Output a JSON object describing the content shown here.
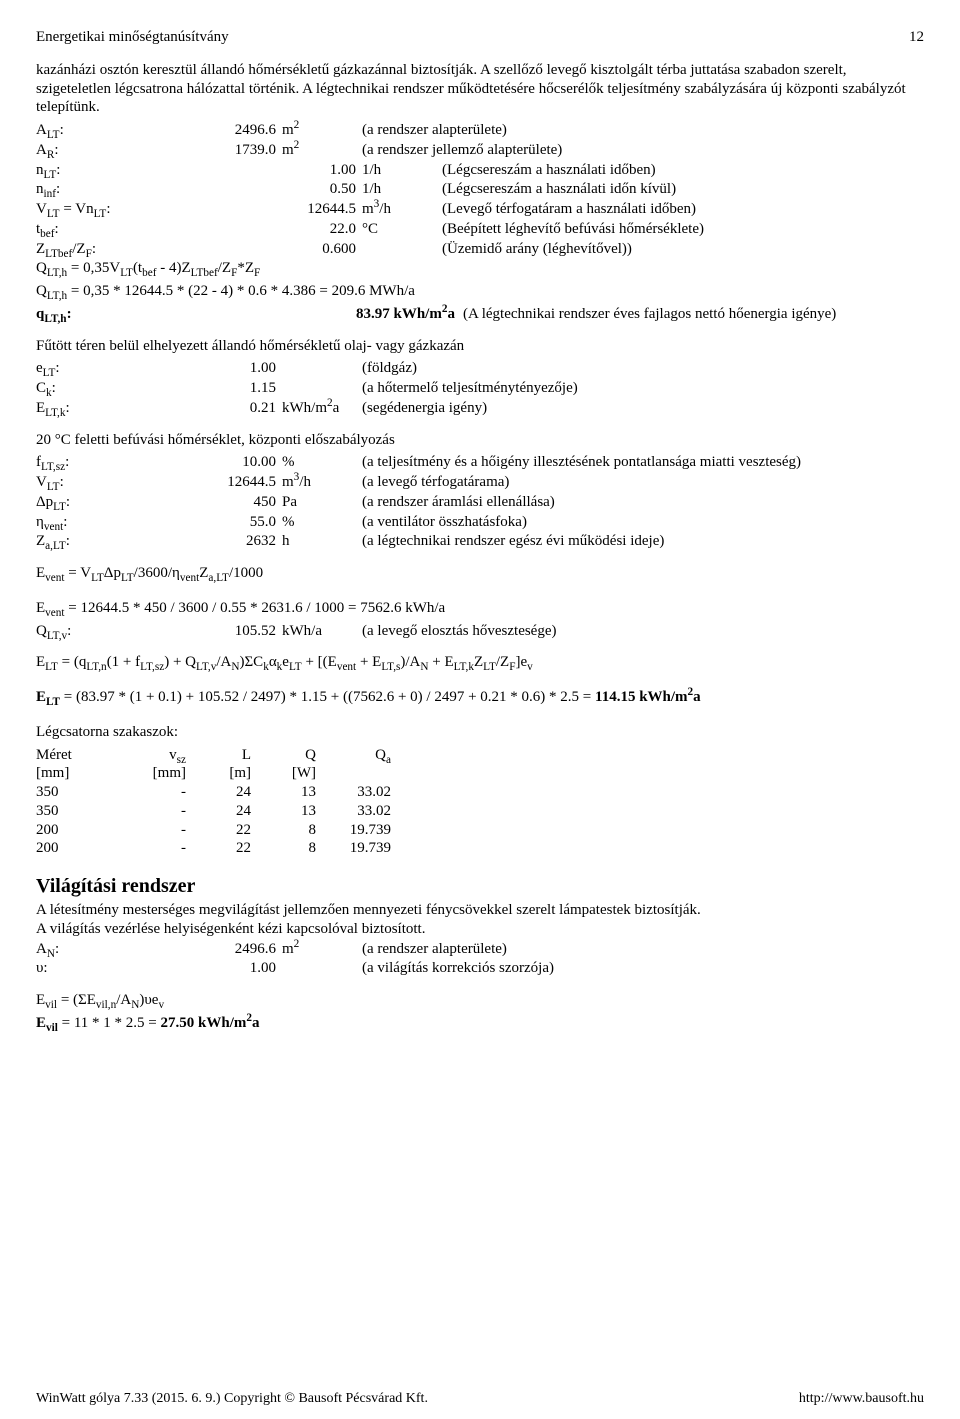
{
  "header": {
    "title": "Energetikai minőségtanúsítvány",
    "page": "12"
  },
  "intro": "kazánházi osztón keresztül állandó hőmérsékletű gázkazánnal biztosítják. A szellőző levegő kisztolgált térba juttatása szabadon szerelt, szigeteletlen légcsatrona hálózattal történik. A légtechnikai rendszer működtetésére hőcserélők teljesítmény szabályzására új központi szabályzót telepítünk.",
  "lt": {
    "ALT": {
      "label": "A",
      "sub": "LT",
      "val": "2496.6",
      "unit_html": "m<sup>2</sup>",
      "desc": "(a rendszer alapterülete)"
    },
    "AR": {
      "label": "A",
      "sub": "R",
      "val": "1739.0",
      "unit_html": "m<sup>2</sup>",
      "desc": "(a rendszer jellemző alapterülete)"
    },
    "nLT": {
      "label": "n",
      "sub": "LT",
      "val": "1.00",
      "unit": "1/h",
      "desc": "(Légcsereszám a használati időben)"
    },
    "ninf": {
      "label": "n",
      "sub": "inf",
      "val": "0.50",
      "unit": "1/h",
      "desc": "(Légcsereszám a használati időn kívül)"
    },
    "VLT": {
      "label_html": "V<sub>LT</sub> = Vn<sub>LT</sub>:",
      "val": "12644.5",
      "unit_html": "m<sup>3</sup>/h",
      "desc": "(Levegő térfogatáram a használati időben)"
    },
    "tbef": {
      "label": "t",
      "sub": "bef",
      "val": "22.0",
      "unit": "°C",
      "desc": "(Beépített léghevítő befúvási hőmérséklete)"
    },
    "Z": {
      "label_html": "Z<sub>LTbef</sub>/Z<sub>F</sub>:",
      "val": "0.600",
      "desc": "(Üzemidő arány (léghevítővel))"
    },
    "eq1": "Q<sub>LT,h</sub> = 0,35V<sub>LT</sub>(t<sub>bef</sub> - 4)Z<sub>LTbef</sub>/Z<sub>F</sub>*Z<sub>F</sub>",
    "eq2": "Q<sub>LT,h</sub> = 0,35 * 12644.5 * (22 - 4) * 0.6 * 4.386 = 209.6 MWh/a",
    "qLTh": {
      "label_html": "q<sub>LT,h</sub>:",
      "val_html": "83.97 kWh/m<sup>2</sup>a",
      "desc": "(A légtechnikai rendszer éves fajlagos nettó hőenergia igénye)"
    }
  },
  "kazan_title": "Fűtött téren belül elhelyezett állandó hőmérsékletű olaj- vagy gázkazán",
  "kazan": {
    "eLT": {
      "label_html": "e<sub>LT</sub>:",
      "val": "1.00",
      "desc": "(földgáz)"
    },
    "Ck": {
      "label_html": "C<sub>k</sub>:",
      "val": "1.15",
      "desc": "(a hőtermelő teljesítménytényezője)"
    },
    "ELTk": {
      "label_html": "E<sub>LT,k</sub>:",
      "val": "0.21",
      "unit_html": "kWh/m<sup>2</sup>a",
      "desc": "(segédenergia igény)"
    }
  },
  "bef_title": "20 °C feletti befúvási hőmérséklet, központi előszabályozás",
  "bef": {
    "fLTsz": {
      "label_html": "f<sub>LT,sz</sub>:",
      "val": "10.00",
      "unit": "%",
      "desc": "(a teljesítmény és a hőigény illesztésének pontatlansága miatti veszteség)"
    },
    "VLT": {
      "label_html": "V<sub>LT</sub>:",
      "val": "12644.5",
      "unit_html": "m<sup>3</sup>/h",
      "desc": "(a levegő térfogatárama)"
    },
    "dpLT": {
      "label_html": "Δp<sub>LT</sub>:",
      "val": "450",
      "unit": "Pa",
      "desc": "(a rendszer áramlási ellenállása)"
    },
    "nvent": {
      "label_html": "η<sub>vent</sub>:",
      "val": "55.0",
      "unit": "%",
      "desc": "(a ventilátor összhatásfoka)"
    },
    "ZaLT": {
      "label_html": "Z<sub>a,LT</sub>:",
      "val": "2632",
      "unit": "h",
      "desc": "(a légtechnikai rendszer egész évi működési ideje)"
    }
  },
  "evEq1": "E<sub>vent</sub> = V<sub>LT</sub>Δp<sub>LT</sub>/3600/η<sub>vent</sub>Z<sub>a,LT</sub>/1000",
  "evEq2": "E<sub>vent</sub> = 12644.5 * 450 / 3600 / 0.55 * 2631.6 / 1000  = 7562.6 kWh/a",
  "QLTv": {
    "label_html": "Q<sub>LT,v</sub>:",
    "val": "105.52",
    "unit": "kWh/a",
    "desc": "(a levegő elosztás hővesztesége)"
  },
  "ELTeq": "E<sub>LT</sub> = (q<sub>LT,n</sub>(1 + f<sub>LT,sz</sub>) + Q<sub>LT,v</sub>/A<sub>N</sub>)ΣC<sub>k</sub>α<sub>k</sub>e<sub>LT</sub> + [(E<sub>vent</sub> + E<sub>LT,s</sub>)/A<sub>N</sub> + E<sub>LT,k</sub>Z<sub>LT</sub>/Z<sub>F</sub>]e<sub>v</sub>",
  "ELTres": "<b>E<sub>LT</sub></b> = (83.97 * (1 + 0.1) + 105.52 / 2497) * 1.15 + ((7562.6 + 0) / 2497 + 0.21 * 0.6) * 2.5 = <b>114.15 kWh/m<sup>2</sup>a</b>",
  "duct": {
    "title": "Légcsatorna szakaszok:",
    "head": {
      "meret": "Méret",
      "vsz": "v<sub>sz</sub>",
      "L": "L",
      "Q": "Q",
      "Qa": "Q<sub>a</sub>"
    },
    "unit": {
      "meret": "[mm]",
      "vsz": "[mm]",
      "L": "[m]",
      "Q": "[W]",
      "Qa": ""
    },
    "rows": [
      {
        "meret": "350",
        "vsz": "-",
        "L": "24",
        "Q": "13",
        "Qa": "33.02"
      },
      {
        "meret": "350",
        "vsz": "-",
        "L": "24",
        "Q": "13",
        "Qa": "33.02"
      },
      {
        "meret": "200",
        "vsz": "-",
        "L": "22",
        "Q": "8",
        "Qa": "19.739"
      },
      {
        "meret": "200",
        "vsz": "-",
        "L": "22",
        "Q": "8",
        "Qa": "19.739"
      }
    ]
  },
  "vil": {
    "title": "Világítási rendszer",
    "p1": "A létesítmény mesterséges megvilágítást jellemzően mennyezeti fénycsövekkel szerelt lámpatestek biztosítják.",
    "p2": "A világítás vezérlése helyiségenként kézi kapcsolóval biztosított.",
    "AN": {
      "label_html": "A<sub>N</sub>:",
      "val": "2496.6",
      "unit_html": "m<sup>2</sup>",
      "desc": "(a rendszer alapterülete)"
    },
    "v": {
      "label": "υ:",
      "val": "1.00",
      "desc": "(a világítás korrekciós szorzója)"
    },
    "eq1": "E<sub>vil</sub> = (ΣE<sub>vil,n</sub>/A<sub>N</sub>)υe<sub>v</sub>",
    "eq2": "<b>E<sub>vil</sub></b> = 11 * 1 * 2.5 = <b>27.50 kWh/m<sup>2</sup>a</b>"
  },
  "footer": {
    "left": "WinWatt gólya 7.33 (2015. 6. 9.) Copyright © Bausoft Pécsvárad Kft.",
    "right": "http://www.bausoft.hu"
  }
}
